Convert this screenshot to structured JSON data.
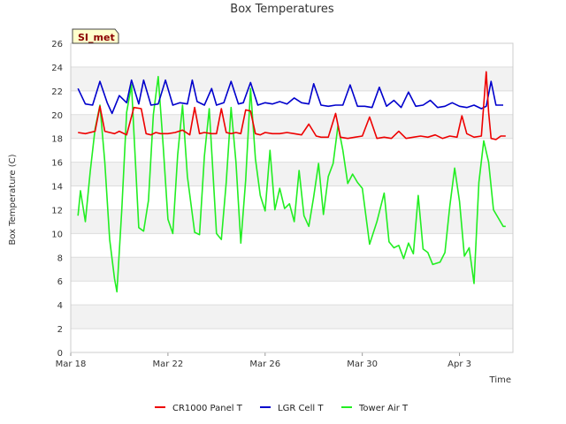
{
  "chart_data": {
    "type": "line",
    "title": "Box Temperatures",
    "site_label": "SI_met",
    "xlabel": "Time",
    "ylabel": "Box Temperature (C)",
    "x_unit": "days since Mar 18",
    "xlim": [
      0,
      18.2
    ],
    "ylim": [
      0,
      26
    ],
    "y_ticks": [
      0,
      2,
      4,
      6,
      8,
      10,
      12,
      14,
      16,
      18,
      20,
      22,
      24,
      26
    ],
    "x_ticks": [
      {
        "value": 0,
        "label": "Mar 18"
      },
      {
        "value": 4,
        "label": "Mar 22"
      },
      {
        "value": 8,
        "label": "Mar 26"
      },
      {
        "value": 12,
        "label": "Mar 30"
      },
      {
        "value": 16,
        "label": "Apr 3"
      }
    ],
    "grid": "horizontal bands",
    "legend_position": "bottom",
    "series": [
      {
        "name": "CR1000 Panel T",
        "color": "#ee0000",
        "x": [
          0.3,
          0.6,
          1.0,
          1.2,
          1.4,
          1.6,
          1.8,
          2.0,
          2.3,
          2.6,
          2.9,
          3.1,
          3.3,
          3.5,
          3.7,
          4.0,
          4.3,
          4.6,
          4.9,
          5.1,
          5.3,
          5.5,
          5.8,
          6.0,
          6.2,
          6.4,
          6.6,
          6.8,
          7.0,
          7.2,
          7.4,
          7.6,
          7.8,
          8.0,
          8.3,
          8.6,
          8.9,
          9.2,
          9.5,
          9.8,
          10.1,
          10.3,
          10.6,
          10.9,
          11.1,
          11.4,
          11.7,
          12.0,
          12.3,
          12.6,
          12.9,
          13.2,
          13.5,
          13.8,
          14.1,
          14.4,
          14.7,
          15.0,
          15.3,
          15.6,
          15.9,
          16.1,
          16.3,
          16.6,
          16.9,
          17.1,
          17.2,
          17.3,
          17.5,
          17.7,
          17.9
        ],
        "values": [
          18.5,
          18.4,
          18.6,
          20.7,
          18.6,
          18.5,
          18.4,
          18.6,
          18.3,
          20.6,
          20.5,
          18.4,
          18.3,
          18.5,
          18.4,
          18.4,
          18.5,
          18.7,
          18.3,
          20.6,
          18.4,
          18.5,
          18.4,
          18.4,
          20.5,
          18.5,
          18.4,
          18.5,
          18.4,
          20.4,
          20.3,
          18.4,
          18.3,
          18.5,
          18.4,
          18.4,
          18.5,
          18.4,
          18.3,
          19.2,
          18.2,
          18.1,
          18.1,
          20.1,
          18.1,
          18.0,
          18.1,
          18.2,
          19.8,
          18.0,
          18.1,
          18.0,
          18.6,
          18.0,
          18.1,
          18.2,
          18.1,
          18.3,
          18.0,
          18.2,
          18.1,
          19.9,
          18.4,
          18.1,
          18.2,
          23.6,
          20.2,
          18.0,
          17.9,
          18.2,
          18.2
        ]
      },
      {
        "name": "LGR Cell T",
        "color": "#0000cc",
        "x": [
          0.3,
          0.6,
          0.9,
          1.2,
          1.5,
          1.7,
          2.0,
          2.3,
          2.5,
          2.8,
          3.0,
          3.3,
          3.6,
          3.9,
          4.2,
          4.5,
          4.8,
          5.0,
          5.2,
          5.5,
          5.8,
          6.0,
          6.3,
          6.6,
          6.9,
          7.1,
          7.4,
          7.7,
          8.0,
          8.3,
          8.6,
          8.9,
          9.2,
          9.5,
          9.8,
          10.0,
          10.3,
          10.6,
          10.9,
          11.2,
          11.5,
          11.8,
          12.1,
          12.4,
          12.7,
          13.0,
          13.3,
          13.6,
          13.9,
          14.2,
          14.5,
          14.8,
          15.1,
          15.4,
          15.7,
          16.0,
          16.3,
          16.6,
          16.9,
          17.1,
          17.3,
          17.5,
          17.8
        ],
        "values": [
          22.2,
          20.9,
          20.8,
          22.8,
          21.0,
          20.1,
          21.6,
          21.0,
          22.9,
          20.9,
          22.9,
          20.8,
          20.9,
          22.9,
          20.8,
          21.0,
          20.9,
          22.9,
          21.1,
          20.8,
          22.2,
          20.8,
          21.0,
          22.8,
          20.9,
          21.0,
          22.7,
          20.8,
          21.0,
          20.9,
          21.1,
          20.9,
          21.4,
          21.0,
          20.9,
          22.6,
          20.8,
          20.7,
          20.8,
          20.8,
          22.5,
          20.7,
          20.7,
          20.6,
          22.3,
          20.7,
          21.2,
          20.6,
          21.9,
          20.7,
          20.8,
          21.2,
          20.6,
          20.7,
          21.0,
          20.7,
          20.6,
          20.8,
          20.5,
          20.7,
          22.8,
          20.8,
          20.8
        ]
      },
      {
        "name": "Tower Air T",
        "color": "#22ee22",
        "x": [
          0.3,
          0.4,
          0.6,
          0.8,
          1.0,
          1.2,
          1.4,
          1.6,
          1.8,
          1.9,
          2.1,
          2.3,
          2.5,
          2.8,
          3.0,
          3.2,
          3.4,
          3.6,
          3.8,
          4.0,
          4.2,
          4.4,
          4.6,
          4.8,
          5.1,
          5.3,
          5.5,
          5.7,
          6.0,
          6.2,
          6.4,
          6.6,
          6.8,
          7.0,
          7.2,
          7.4,
          7.6,
          7.8,
          8.0,
          8.2,
          8.4,
          8.6,
          8.8,
          9.0,
          9.2,
          9.4,
          9.6,
          9.8,
          10.0,
          10.2,
          10.4,
          10.6,
          10.8,
          11.0,
          11.2,
          11.4,
          11.6,
          11.8,
          12.0,
          12.3,
          12.6,
          12.9,
          13.1,
          13.3,
          13.5,
          13.7,
          13.9,
          14.1,
          14.3,
          14.5,
          14.7,
          14.9,
          15.2,
          15.4,
          15.6,
          15.8,
          16.0,
          16.2,
          16.4,
          16.6,
          16.8,
          17.0,
          17.2,
          17.4,
          17.6,
          17.8,
          17.9
        ],
        "values": [
          11.5,
          13.6,
          11.0,
          15.2,
          18.8,
          20.8,
          16.0,
          9.5,
          6.2,
          5.1,
          12.0,
          20.2,
          22.5,
          10.5,
          10.2,
          12.8,
          20.0,
          23.2,
          17.5,
          11.2,
          10.0,
          16.6,
          20.8,
          14.8,
          10.1,
          9.9,
          16.5,
          20.5,
          10.0,
          9.5,
          14.3,
          20.6,
          16.0,
          9.2,
          14.5,
          22.2,
          16.3,
          13.2,
          11.9,
          17.0,
          12.0,
          13.8,
          12.1,
          12.5,
          11.0,
          15.3,
          11.5,
          10.6,
          13.1,
          15.9,
          11.6,
          14.8,
          15.9,
          19.1,
          17.0,
          14.2,
          15.0,
          14.3,
          13.8,
          9.1,
          11.0,
          13.4,
          9.3,
          8.8,
          9.0,
          7.9,
          9.2,
          8.3,
          13.2,
          8.7,
          8.4,
          7.4,
          7.6,
          8.4,
          12.3,
          15.5,
          12.7,
          8.1,
          8.8,
          5.8,
          14.3,
          17.8,
          16.0,
          12.0,
          11.3,
          10.6,
          10.6
        ]
      }
    ]
  }
}
